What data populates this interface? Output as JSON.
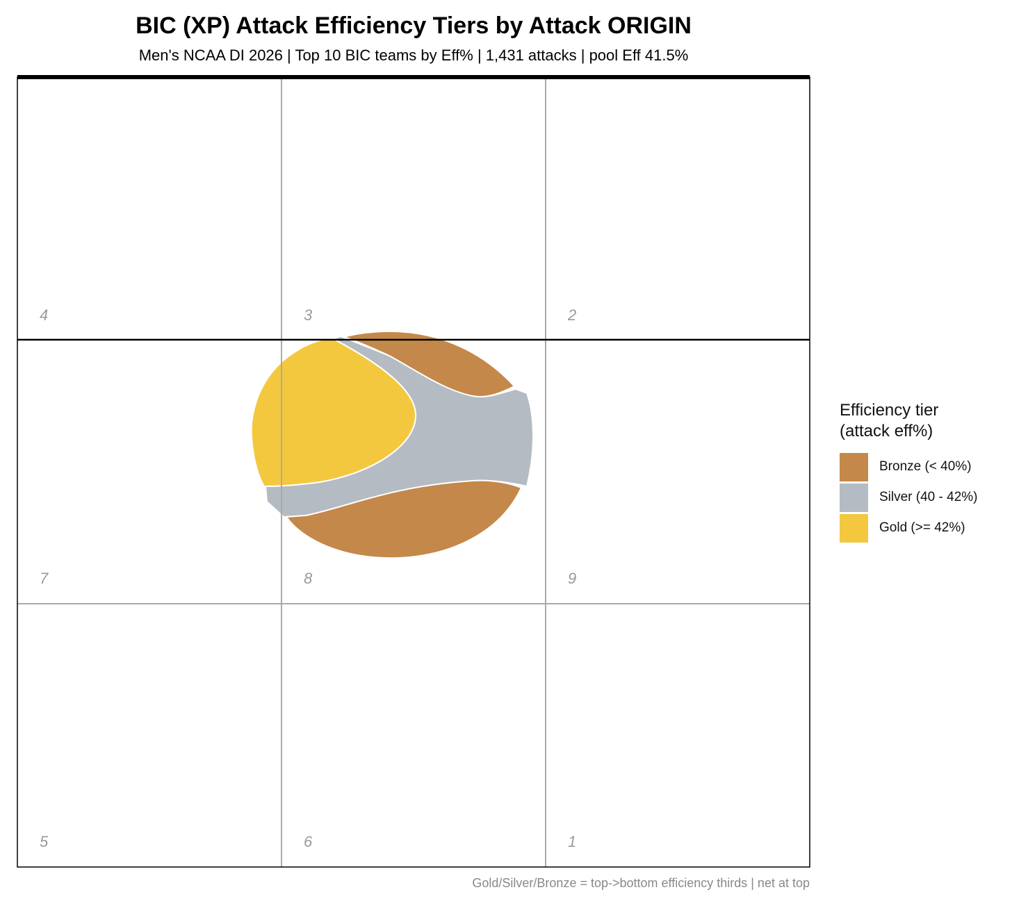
{
  "chart_data": {
    "type": "heatmap",
    "title": "BIC (XP) Attack Efficiency Tiers by Attack ORIGIN",
    "subtitle": "Men's NCAA DI 2026 | Top 10 BIC teams by Eff% | 1,431 attacks | pool Eff 41.5%",
    "caption": "Gold/Silver/Bronze = top->bottom efficiency thirds | net at top",
    "zones": [
      {
        "label": "4",
        "row": 0,
        "col": 0
      },
      {
        "label": "3",
        "row": 0,
        "col": 1
      },
      {
        "label": "2",
        "row": 0,
        "col": 2
      },
      {
        "label": "7",
        "row": 1,
        "col": 0
      },
      {
        "label": "8",
        "row": 1,
        "col": 1
      },
      {
        "label": "9",
        "row": 1,
        "col": 2
      },
      {
        "label": "5",
        "row": 2,
        "col": 0
      },
      {
        "label": "6",
        "row": 2,
        "col": 1
      },
      {
        "label": "1",
        "row": 2,
        "col": 2
      }
    ],
    "legend": {
      "title": "Efficiency tier\n(attack eff%)",
      "position": "right",
      "items": [
        {
          "label": "Bronze (< 40%)",
          "color": "#C4884A"
        },
        {
          "label": "Silver (40 - 42%)",
          "color": "#B4BBC2"
        },
        {
          "label": "Gold (>= 42%)",
          "color": "#F3C83F"
        }
      ]
    },
    "regions_note_colors": {
      "bronze": "#C4884A",
      "silver": "#B4BBC2",
      "gold": "#F3C83F",
      "contour": "#ffffff"
    }
  }
}
